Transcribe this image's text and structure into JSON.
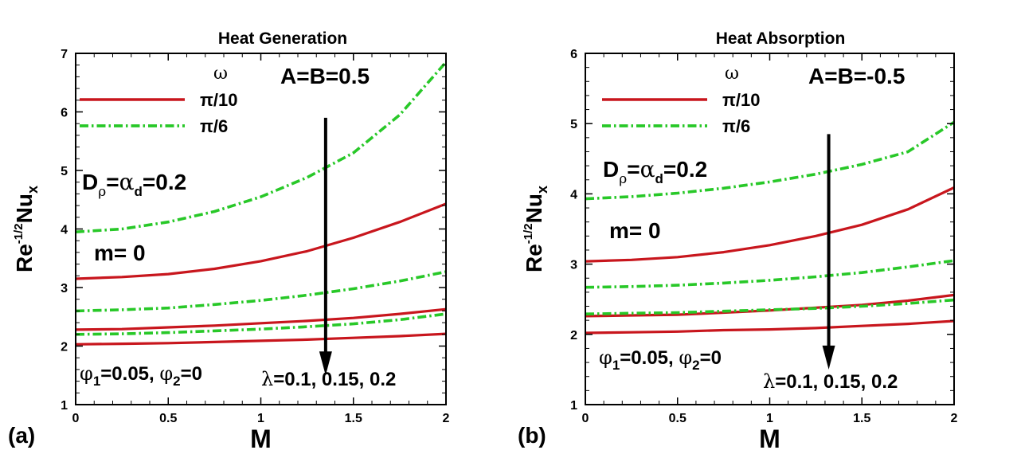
{
  "chart_data": [
    {
      "panel_label": "(a)",
      "type": "line",
      "title": "Heat Generation",
      "xlabel": "M",
      "ylabel": {
        "base": "Re",
        "exp": "-1/2",
        "main": "Nu",
        "sub": "x"
      },
      "xlim": [
        0,
        2
      ],
      "ylim": [
        1,
        7
      ],
      "xticks": [
        0,
        0.5,
        1,
        1.5,
        2
      ],
      "yticks": [
        1,
        2,
        3,
        4,
        5,
        6,
        7
      ],
      "legend": {
        "title": "ω",
        "entries": [
          {
            "label": "π/10",
            "style": "solid",
            "color": "#c8161d"
          },
          {
            "label": "π/6",
            "style": "dashdot",
            "color": "#28c828"
          }
        ]
      },
      "annotations": {
        "ab": "A=B=0.5",
        "d_rho": {
          "D": "D",
          "rho": "ρ",
          "mid": "=",
          "alpha": "α",
          "d": "d",
          "tail": "=0.2"
        },
        "m": "m= 0",
        "phi": {
          "phi": "φ",
          "s1": "1",
          "t1": "=0.05, ",
          "s2": "2",
          "t2": "=0"
        },
        "lambda": {
          "sym": "λ",
          "text": "=0.1, 0.15, 0.2"
        }
      },
      "series": [
        {
          "name": "π/6, λ=0.1",
          "omega": "π/6",
          "style": "dashdot",
          "color": "#28c828",
          "x": [
            0,
            0.25,
            0.5,
            0.75,
            1,
            1.25,
            1.5,
            1.75,
            2
          ],
          "y": [
            3.95,
            4.0,
            4.12,
            4.3,
            4.55,
            4.88,
            5.3,
            5.95,
            6.85
          ]
        },
        {
          "name": "π/10, λ=0.1",
          "omega": "π/10",
          "style": "solid",
          "color": "#c8161d",
          "x": [
            0,
            0.25,
            0.5,
            0.75,
            1,
            1.25,
            1.5,
            1.75,
            2
          ],
          "y": [
            3.15,
            3.18,
            3.23,
            3.32,
            3.45,
            3.62,
            3.85,
            4.12,
            4.43
          ]
        },
        {
          "name": "π/6, λ=0.15",
          "omega": "π/6",
          "style": "dashdot",
          "color": "#28c828",
          "x": [
            0,
            0.25,
            0.5,
            0.75,
            1,
            1.25,
            1.5,
            1.75,
            2
          ],
          "y": [
            2.6,
            2.62,
            2.65,
            2.71,
            2.78,
            2.87,
            2.98,
            3.11,
            3.27
          ]
        },
        {
          "name": "π/10, λ=0.15",
          "omega": "π/10",
          "style": "solid",
          "color": "#c8161d",
          "x": [
            0,
            0.25,
            0.5,
            0.75,
            1,
            1.25,
            1.5,
            1.75,
            2
          ],
          "y": [
            2.28,
            2.29,
            2.32,
            2.35,
            2.39,
            2.43,
            2.48,
            2.55,
            2.63
          ]
        },
        {
          "name": "π/6, λ=0.2",
          "omega": "π/6",
          "style": "dashdot",
          "color": "#28c828",
          "x": [
            0,
            0.25,
            0.5,
            0.75,
            1,
            1.25,
            1.5,
            1.75,
            2
          ],
          "y": [
            2.2,
            2.21,
            2.23,
            2.26,
            2.29,
            2.33,
            2.38,
            2.45,
            2.55
          ]
        },
        {
          "name": "π/10, λ=0.2",
          "omega": "π/10",
          "style": "solid",
          "color": "#c8161d",
          "x": [
            0,
            0.25,
            0.5,
            0.75,
            1,
            1.25,
            1.5,
            1.75,
            2
          ],
          "y": [
            2.03,
            2.04,
            2.05,
            2.07,
            2.09,
            2.11,
            2.14,
            2.17,
            2.21
          ]
        }
      ],
      "arrow": {
        "x": 1.35,
        "y_from": 5.9,
        "y_to": 1.5
      }
    },
    {
      "panel_label": "(b)",
      "type": "line",
      "title": "Heat Absorption",
      "xlabel": "M",
      "ylabel": {
        "base": "Re",
        "exp": "-1/2",
        "main": "Nu",
        "sub": "x"
      },
      "xlim": [
        0,
        2
      ],
      "ylim": [
        1,
        6
      ],
      "xticks": [
        0,
        0.5,
        1,
        1.5,
        2
      ],
      "yticks": [
        1,
        2,
        3,
        4,
        5,
        6
      ],
      "legend": {
        "title": "ω",
        "entries": [
          {
            "label": "π/10",
            "style": "solid",
            "color": "#c8161d"
          },
          {
            "label": "π/6",
            "style": "dashdot",
            "color": "#28c828"
          }
        ]
      },
      "annotations": {
        "ab": "A=B=-0.5",
        "d_rho": {
          "D": "D",
          "rho": "ρ",
          "mid": "=",
          "alpha": "α",
          "d": "d",
          "tail": "=0.2"
        },
        "m": "m= 0",
        "phi": {
          "phi": "φ",
          "s1": "1",
          "t1": "=0.05, ",
          "s2": "2",
          "t2": "=0"
        },
        "lambda": {
          "sym": "λ",
          "text": "=0.1, 0.15, 0.2"
        }
      },
      "series": [
        {
          "name": "π/6, λ=0.1",
          "omega": "π/6",
          "style": "dashdot",
          "color": "#28c828",
          "x": [
            0,
            0.25,
            0.5,
            0.75,
            1,
            1.25,
            1.5,
            1.75,
            2
          ],
          "y": [
            3.93,
            3.96,
            4.01,
            4.08,
            4.17,
            4.28,
            4.42,
            4.6,
            5.02
          ]
        },
        {
          "name": "π/10, λ=0.1",
          "omega": "π/10",
          "style": "solid",
          "color": "#c8161d",
          "x": [
            0,
            0.25,
            0.5,
            0.75,
            1,
            1.25,
            1.5,
            1.75,
            2
          ],
          "y": [
            3.04,
            3.06,
            3.1,
            3.17,
            3.27,
            3.4,
            3.56,
            3.78,
            4.09
          ]
        },
        {
          "name": "π/6, λ=0.15",
          "omega": "π/6",
          "style": "dashdot",
          "color": "#28c828",
          "x": [
            0,
            0.25,
            0.5,
            0.75,
            1,
            1.25,
            1.5,
            1.75,
            2
          ],
          "y": [
            2.67,
            2.68,
            2.7,
            2.73,
            2.77,
            2.82,
            2.88,
            2.96,
            3.05
          ]
        },
        {
          "name": "π/10, λ=0.15",
          "omega": "π/10",
          "style": "solid",
          "color": "#c8161d",
          "x": [
            0,
            0.25,
            0.5,
            0.75,
            1,
            1.25,
            1.5,
            1.75,
            2
          ],
          "y": [
            2.26,
            2.27,
            2.28,
            2.31,
            2.34,
            2.38,
            2.42,
            2.48,
            2.56
          ]
        },
        {
          "name": "π/6, λ=0.2",
          "omega": "π/6",
          "style": "dashdot",
          "color": "#28c828",
          "x": [
            0,
            0.25,
            0.5,
            0.75,
            1,
            1.25,
            1.5,
            1.75,
            2
          ],
          "y": [
            2.29,
            2.3,
            2.31,
            2.33,
            2.35,
            2.37,
            2.4,
            2.44,
            2.49
          ]
        },
        {
          "name": "π/10, λ=0.2",
          "omega": "π/10",
          "style": "solid",
          "color": "#c8161d",
          "x": [
            0,
            0.25,
            0.5,
            0.75,
            1,
            1.25,
            1.5,
            1.75,
            2
          ],
          "y": [
            2.02,
            2.03,
            2.04,
            2.06,
            2.07,
            2.09,
            2.12,
            2.15,
            2.19
          ]
        }
      ],
      "arrow": {
        "x": 1.32,
        "y_from": 4.85,
        "y_to": 1.5
      }
    }
  ]
}
